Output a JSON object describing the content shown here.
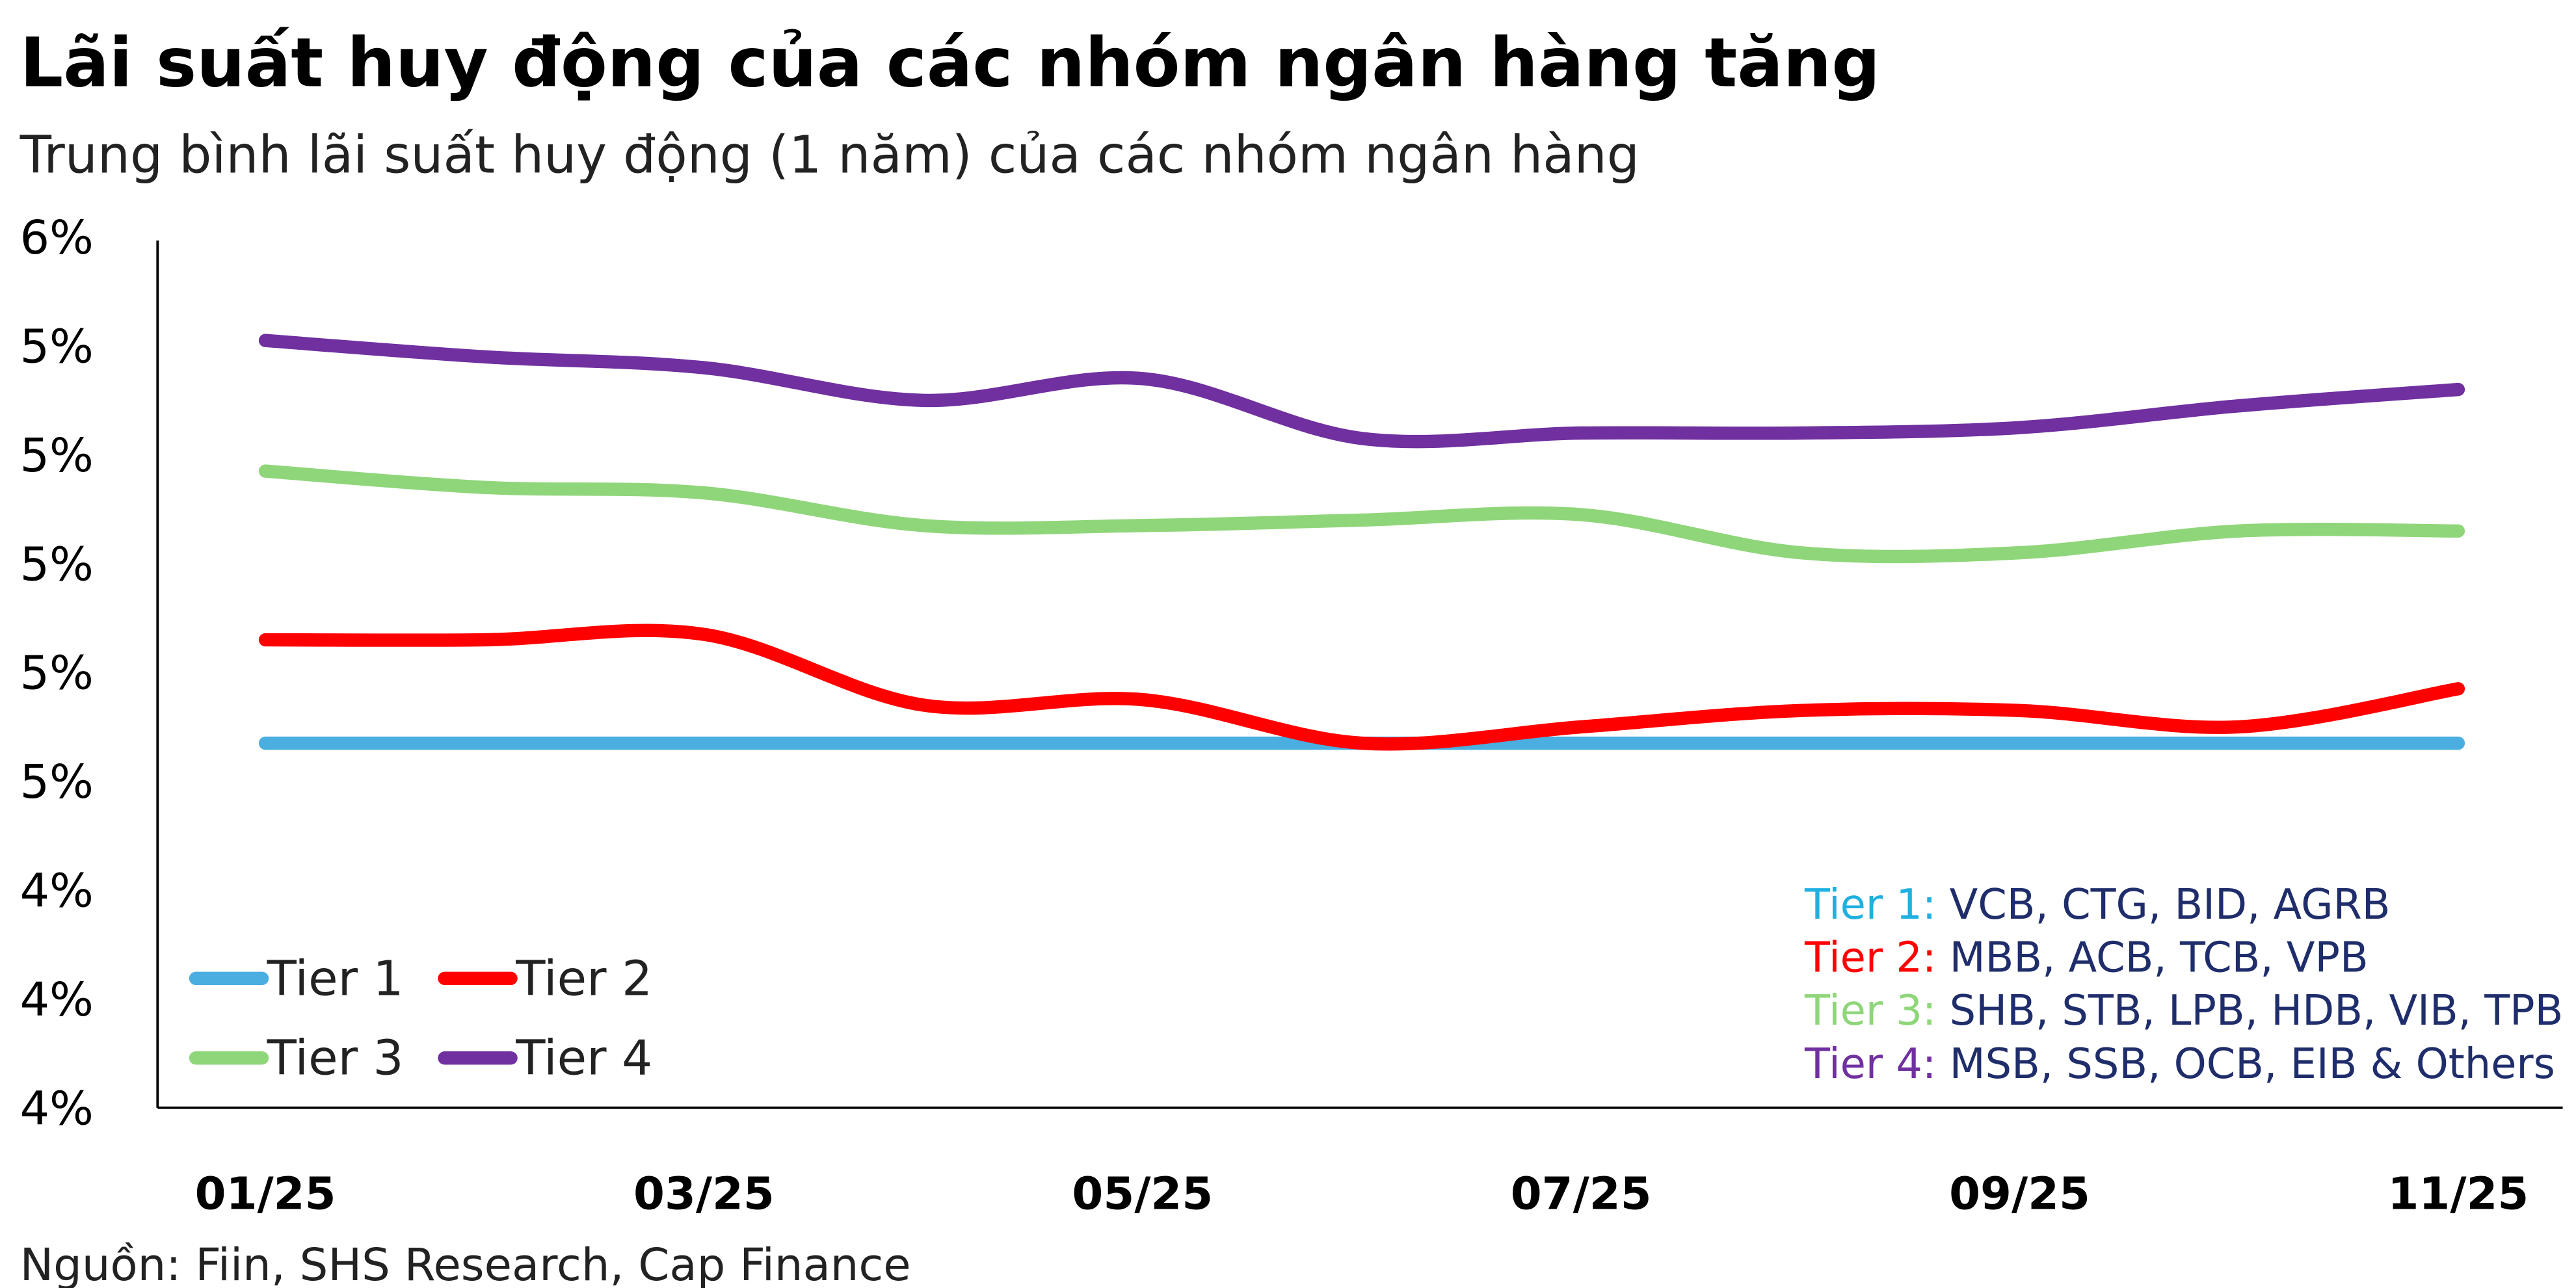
{
  "chart_data": {
    "type": "line",
    "title": "Lãi suất huy động của các nhóm ngân hàng tăng",
    "subtitle": "Trung bình lãi suất huy động (1 năm) của các nhóm ngân hàng",
    "source": "Nguồn: Fiin, SHS Research, Cap Finance",
    "categories": [
      "01/25",
      null,
      "03/25",
      null,
      "05/25",
      null,
      "07/25",
      null,
      "09/25",
      null,
      "11/25"
    ],
    "ylim": [
      4.0,
      5.6
    ],
    "yticks": [
      {
        "value": 4.0,
        "label": "4%"
      },
      {
        "value": 4.2,
        "label": "4%"
      },
      {
        "value": 4.4,
        "label": "4%"
      },
      {
        "value": 4.6,
        "label": "5%"
      },
      {
        "value": 4.8,
        "label": "5%"
      },
      {
        "value": 5.0,
        "label": "5%"
      },
      {
        "value": 5.2,
        "label": "5%"
      },
      {
        "value": 5.4,
        "label": "5%"
      },
      {
        "value": 5.6,
        "label": "6%"
      }
    ],
    "grid": false,
    "legend": "bottom-left",
    "series": [
      {
        "name": "Tier 1",
        "color": "#4aaee0",
        "values": [
          4.67,
          4.67,
          4.67,
          4.67,
          4.67,
          4.67,
          4.67,
          4.67,
          4.67,
          4.67,
          4.67
        ]
      },
      {
        "name": "Tier 2",
        "color": "#ff0000",
        "values": [
          4.86,
          4.86,
          4.87,
          4.74,
          4.75,
          4.67,
          4.7,
          4.73,
          4.73,
          4.7,
          4.77
        ]
      },
      {
        "name": "Tier 3",
        "color": "#8fd67a",
        "values": [
          5.17,
          5.14,
          5.13,
          5.07,
          5.07,
          5.08,
          5.09,
          5.02,
          5.02,
          5.06,
          5.06
        ]
      },
      {
        "name": "Tier 4",
        "color": "#7030a0",
        "values": [
          5.41,
          5.38,
          5.36,
          5.3,
          5.34,
          5.23,
          5.24,
          5.24,
          5.25,
          5.29,
          5.32
        ]
      }
    ],
    "notes": [
      {
        "label": "Tier 1:",
        "text": "VCB, CTG, BID, AGRB",
        "color": "#1fb0e0"
      },
      {
        "label": "Tier 2:",
        "text": "MBB, ACB, TCB, VPB",
        "color": "#ff0000"
      },
      {
        "label": "Tier 3:",
        "text": "SHB, STB, LPB, HDB, VIB, TPB",
        "color": "#8fd67a"
      },
      {
        "label": "Tier 4:",
        "text": "MSB, SSB, OCB, EIB & Others",
        "color": "#7030a0"
      }
    ]
  }
}
